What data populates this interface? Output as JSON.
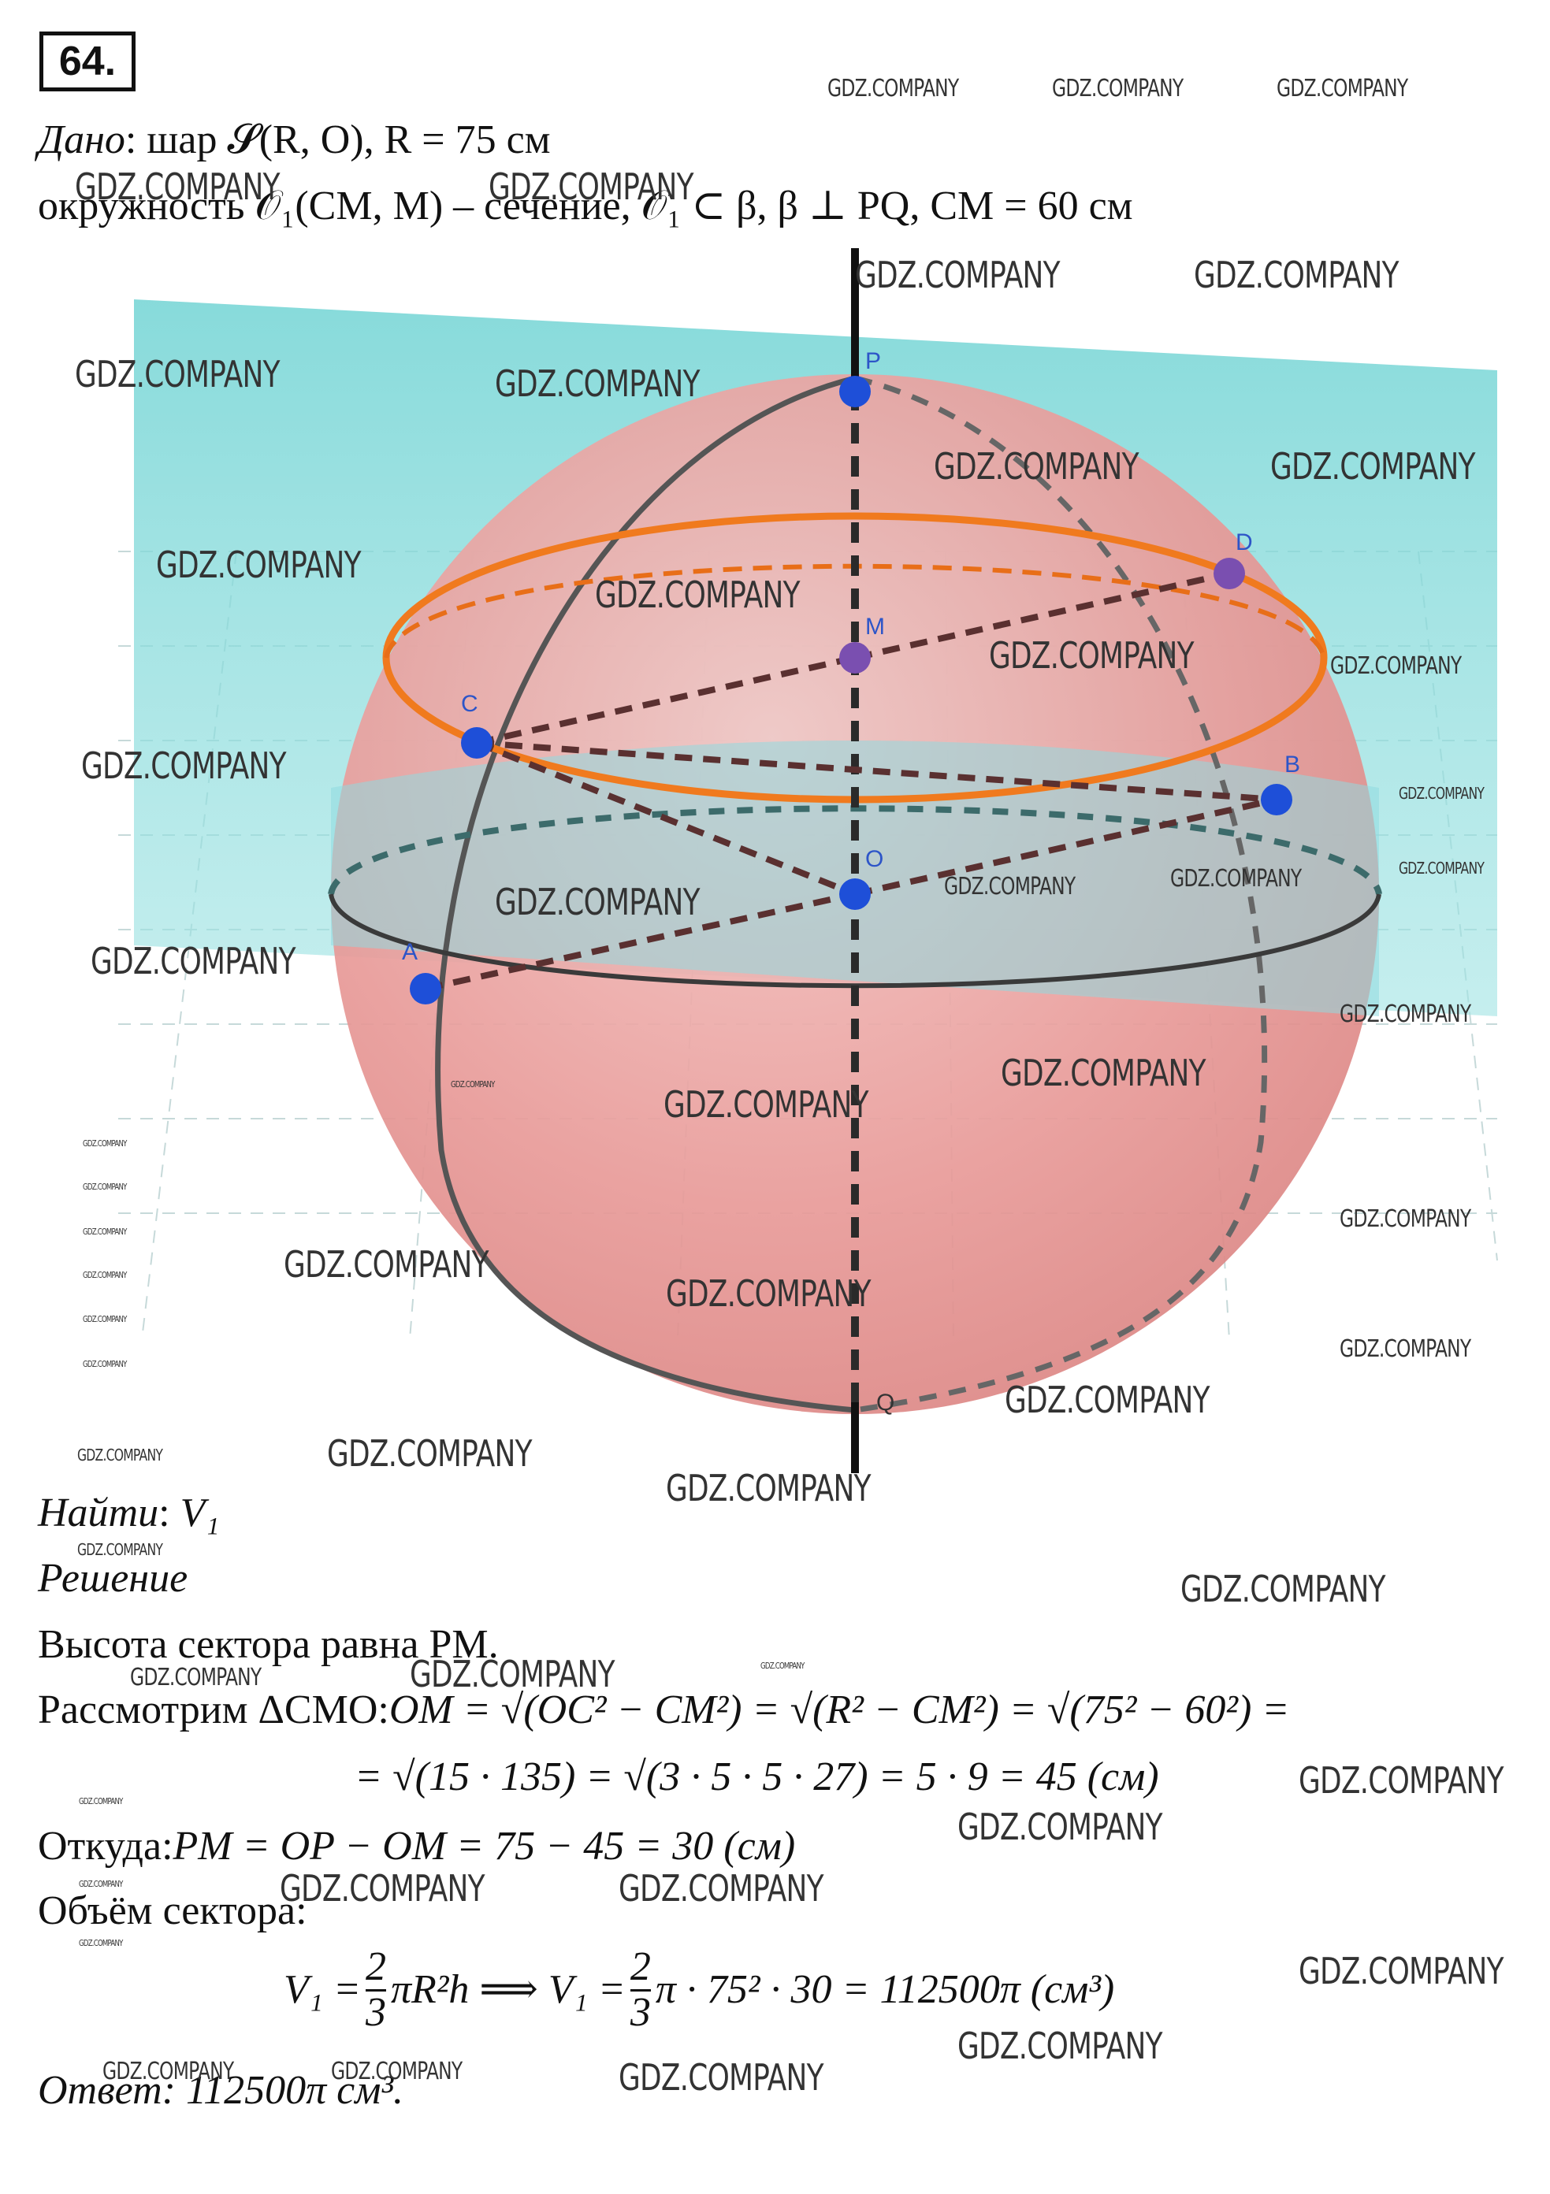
{
  "problem_number": "64.",
  "given": {
    "label": "Дано",
    "line1": ": шар 𝓢(R, O), R = 75 см",
    "line2": "окружность 𝒪₁(CM, M) – сечение, 𝒪₁ ⊂ β, β ⊥ PQ,  CM = 60 см"
  },
  "figure": {
    "points": {
      "P": "P",
      "D": "D",
      "M": "M",
      "C": "C",
      "B": "B",
      "O": "O",
      "A": "A",
      "Q": "Q"
    },
    "colors": {
      "sphere": "#e89a98",
      "plane": "#7fd6d6",
      "section": "#f07a1e",
      "points": "#1e4fd8",
      "point_purple": "#7a4fb0"
    }
  },
  "find": {
    "label": "Найти",
    "value": "V₁"
  },
  "solution": {
    "label": "Решение",
    "line1": "Высота сектора равна PM.",
    "line2_prefix": "Рассмотрим ΔCMO:",
    "line2_formula": "OM = √(OC² − CM²) = √(R² − CM²) = √(75² − 60²) =",
    "line3": "= √(15 · 135) = √(3 · 5 · 5 · 27) = 5 · 9 = 45 (см)",
    "line4_prefix": "Откуда:",
    "line4_formula": "PM = OP − OM = 75 − 45 = 30 (см)",
    "line5": "Объём сектора:",
    "volume": {
      "lhs": "V₁ =",
      "frac_num": "2",
      "frac_den": "3",
      "mid": "πR²h  ⟹  V₁ =",
      "rhs": "π · 75² · 30 = 112500π (см³)"
    }
  },
  "answer": {
    "label": "Ответ:",
    "value": "112500π см³."
  },
  "watermark": "GDZ.COMPANY"
}
